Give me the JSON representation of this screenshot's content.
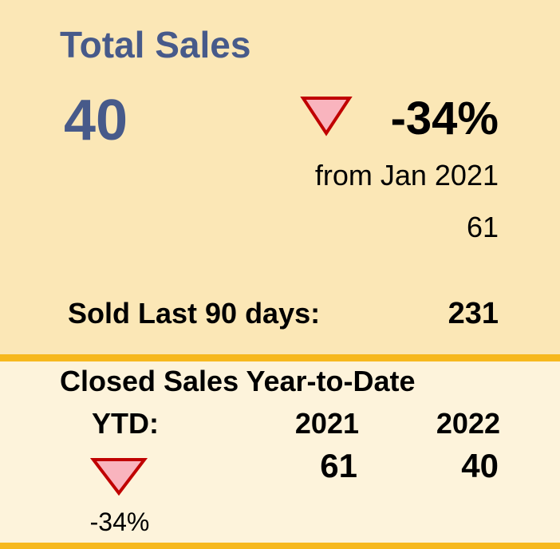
{
  "top": {
    "title": "Total Sales",
    "value": "40",
    "change": "-34%",
    "comparison_label": "from Jan 2021",
    "comparison_value": "61",
    "last90_label": "Sold Last 90 days:",
    "last90_value": "231"
  },
  "bottom": {
    "title": "Closed Sales Year-to-Date",
    "ytd_label": "YTD:",
    "columns": [
      "2021",
      "2022"
    ],
    "values": [
      "61",
      "40"
    ],
    "change": "-34%"
  }
}
